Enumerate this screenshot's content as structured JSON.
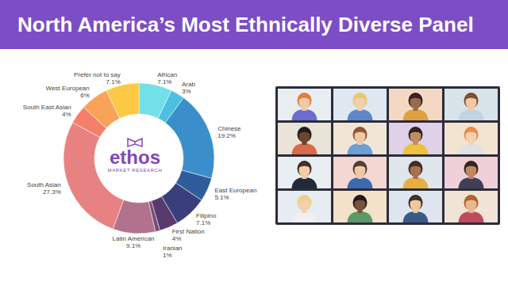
{
  "chart_data": {
    "type": "donut",
    "title": "North America’s Most Ethnically Diverse Panel",
    "annotations": [
      "ethos",
      "MARKET RESEARCH"
    ],
    "categories": [
      "African",
      "Arab",
      "Chinese",
      "East European",
      "Filipino",
      "First Nation",
      "Iranian",
      "Latin American",
      "South Asian",
      "South East Asian",
      "West European",
      "Prefer not to say"
    ],
    "values": [
      7.1,
      3,
      19.2,
      5.1,
      7.1,
      4,
      1,
      9.1,
      27.3,
      4,
      6,
      7.1
    ],
    "value_labels": [
      "7.1%",
      "3%",
      "19.2%",
      "5.1%",
      "7.1%",
      "4%",
      "1%",
      "9.1%",
      "27.3%",
      "4%",
      "6%",
      "7.1%"
    ],
    "colors": [
      "#72e0e8",
      "#4cc0e0",
      "#3a8fca",
      "#2f5d9c",
      "#3a3f7c",
      "#583a6e",
      "#7a4a7c",
      "#b2718c",
      "#e88282",
      "#f47f6a",
      "#f9a35a",
      "#fbc944"
    ],
    "data_labels": true
  }
}
